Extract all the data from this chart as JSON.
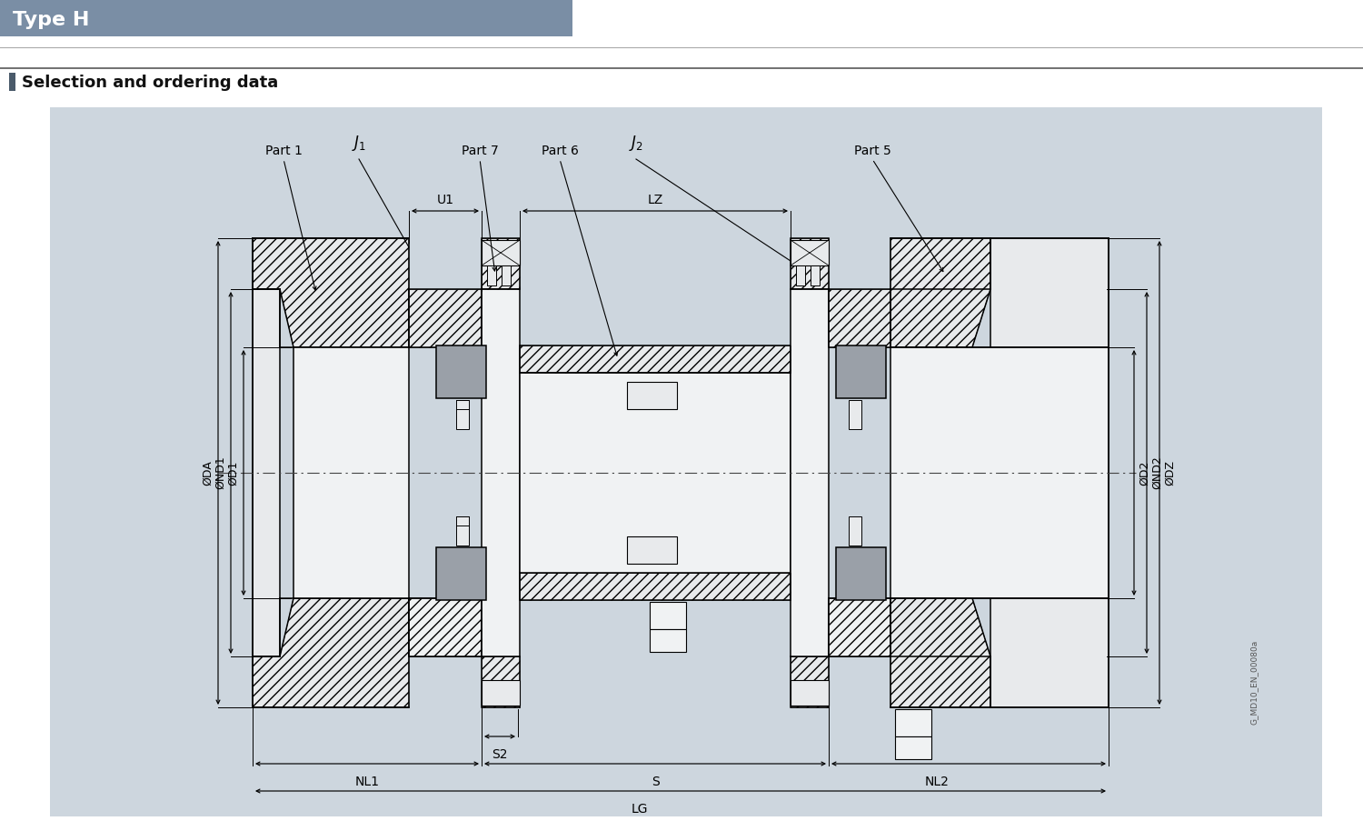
{
  "title": "Type H",
  "subtitle": "Selection and ordering data",
  "title_bg": "#7a8ea5",
  "subtitle_bar_color": "#4a5a6a",
  "diagram_bg": "#cdd6de",
  "page_bg": "#ffffff",
  "line_color": "#000000",
  "col_part": "#e8eaec",
  "col_hatch_bg": "#dde0e3",
  "col_gray_elem": "#9aa0a8",
  "col_tube": "#f0f2f3",
  "watermark_text": "G_MD10_EN_00080a"
}
